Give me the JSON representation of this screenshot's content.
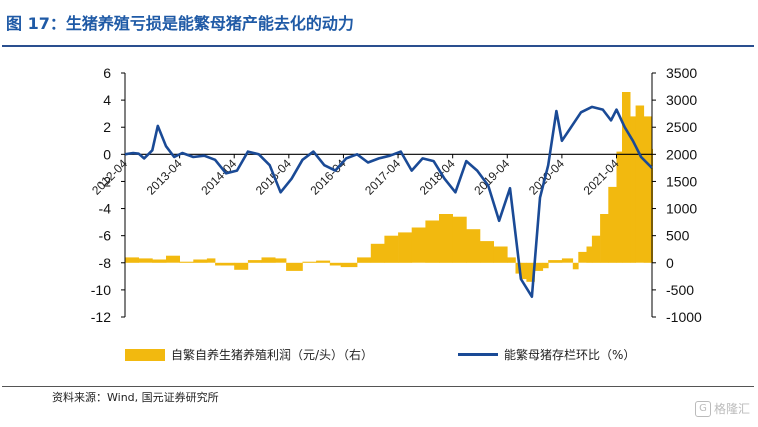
{
  "title": "图 17：生猪养殖亏损是能繁母猪产能去化的动力",
  "source": "资料来源：Wind, 国元证券研究所",
  "watermark": {
    "mark": "G",
    "text": "格隆汇"
  },
  "legend": {
    "bars_label": "自繁自养生猪养殖利润（元/头）（右）",
    "line_label": "能繁母猪存栏环比（%）"
  },
  "colors": {
    "bars": "#f2b90f",
    "line": "#1a4a96",
    "title": "#1f5aa6"
  },
  "chart_data": {
    "type": "bar+line",
    "x_ticks": [
      "2012-04",
      "2013-04",
      "2014-04",
      "2015-04",
      "2016-04",
      "2017-04",
      "2018-04",
      "2019-04",
      "2020-04",
      "2021-04"
    ],
    "left_axis": {
      "min": -12,
      "max": 6,
      "step": 2,
      "ticks": [
        "6",
        "4",
        "2",
        "0",
        "-2",
        "-4",
        "-6",
        "-8",
        "-10",
        "-12"
      ]
    },
    "right_axis": {
      "min": -1000,
      "max": 3500,
      "step": 500,
      "ticks": [
        "3500",
        "3000",
        "2500",
        "2000",
        "1500",
        "1000",
        "500",
        "0",
        "-500",
        "-1000"
      ]
    },
    "x_range": [
      2012.25,
      2021.9
    ],
    "series": [
      {
        "name": "自繁自养生猪养殖利润（元/头）（右）",
        "kind": "bar",
        "axis": "right",
        "points": [
          [
            2012.25,
            100
          ],
          [
            2012.5,
            80
          ],
          [
            2012.75,
            60
          ],
          [
            2013.0,
            130
          ],
          [
            2013.25,
            20
          ],
          [
            2013.5,
            60
          ],
          [
            2013.75,
            80
          ],
          [
            2013.9,
            -50
          ],
          [
            2014.0,
            -50
          ],
          [
            2014.25,
            -130
          ],
          [
            2014.5,
            50
          ],
          [
            2014.75,
            100
          ],
          [
            2015.0,
            80
          ],
          [
            2015.2,
            -150
          ],
          [
            2015.5,
            20
          ],
          [
            2015.75,
            40
          ],
          [
            2016.0,
            -50
          ],
          [
            2016.2,
            -80
          ],
          [
            2016.5,
            100
          ],
          [
            2016.75,
            350
          ],
          [
            2017.0,
            500
          ],
          [
            2017.25,
            560
          ],
          [
            2017.5,
            650
          ],
          [
            2017.75,
            780
          ],
          [
            2018.0,
            900
          ],
          [
            2018.25,
            850
          ],
          [
            2018.5,
            620
          ],
          [
            2018.75,
            400
          ],
          [
            2019.0,
            300
          ],
          [
            2019.25,
            100
          ],
          [
            2019.4,
            -200
          ],
          [
            2019.5,
            -300
          ],
          [
            2019.6,
            -350
          ],
          [
            2019.75,
            -150
          ],
          [
            2019.9,
            -100
          ],
          [
            2020.0,
            50
          ],
          [
            2020.25,
            80
          ],
          [
            2020.45,
            -120
          ],
          [
            2020.55,
            200
          ],
          [
            2020.7,
            300
          ],
          [
            2020.8,
            500
          ],
          [
            2020.95,
            900
          ],
          [
            2021.1,
            1400
          ],
          [
            2021.25,
            2050
          ],
          [
            2021.35,
            3150
          ],
          [
            2021.5,
            2700
          ],
          [
            2021.6,
            2900
          ],
          [
            2021.75,
            2700
          ],
          [
            2021.9,
            2100
          ]
        ]
      },
      {
        "name": "能繁母猪存栏环比（%）",
        "kind": "line",
        "axis": "left",
        "points": [
          [
            2012.25,
            0.0
          ],
          [
            2012.4,
            0.1
          ],
          [
            2012.5,
            0.05
          ],
          [
            2012.6,
            -0.3
          ],
          [
            2012.75,
            0.3
          ],
          [
            2012.85,
            2.1
          ],
          [
            2013.0,
            0.6
          ],
          [
            2013.15,
            -0.2
          ],
          [
            2013.3,
            0.1
          ],
          [
            2013.5,
            -0.2
          ],
          [
            2013.7,
            -0.1
          ],
          [
            2013.9,
            -0.4
          ],
          [
            2014.1,
            -1.4
          ],
          [
            2014.3,
            -1.2
          ],
          [
            2014.5,
            0.2
          ],
          [
            2014.7,
            0.0
          ],
          [
            2014.9,
            -0.8
          ],
          [
            2015.1,
            -2.8
          ],
          [
            2015.3,
            -1.8
          ],
          [
            2015.5,
            -0.4
          ],
          [
            2015.7,
            0.2
          ],
          [
            2015.9,
            -0.8
          ],
          [
            2016.1,
            -1.2
          ],
          [
            2016.3,
            -0.3
          ],
          [
            2016.5,
            0.0
          ],
          [
            2016.7,
            -0.6
          ],
          [
            2016.9,
            -0.3
          ],
          [
            2017.1,
            -0.1
          ],
          [
            2017.3,
            0.2
          ],
          [
            2017.5,
            -1.2
          ],
          [
            2017.7,
            -0.3
          ],
          [
            2017.9,
            -0.5
          ],
          [
            2018.1,
            -1.8
          ],
          [
            2018.3,
            -2.8
          ],
          [
            2018.5,
            -0.5
          ],
          [
            2018.7,
            -1.2
          ],
          [
            2018.9,
            -2.3
          ],
          [
            2019.1,
            -4.9
          ],
          [
            2019.3,
            -2.5
          ],
          [
            2019.5,
            -9.2
          ],
          [
            2019.7,
            -10.5
          ],
          [
            2019.85,
            -3.2
          ],
          [
            2020.0,
            -0.8
          ],
          [
            2020.15,
            3.2
          ],
          [
            2020.25,
            1.0
          ],
          [
            2020.4,
            1.9
          ],
          [
            2020.6,
            3.1
          ],
          [
            2020.8,
            3.5
          ],
          [
            2021.0,
            3.3
          ],
          [
            2021.15,
            2.5
          ],
          [
            2021.25,
            3.3
          ],
          [
            2021.4,
            2.0
          ],
          [
            2021.55,
            1.0
          ],
          [
            2021.7,
            -0.2
          ],
          [
            2021.9,
            -1.0
          ]
        ]
      }
    ]
  }
}
